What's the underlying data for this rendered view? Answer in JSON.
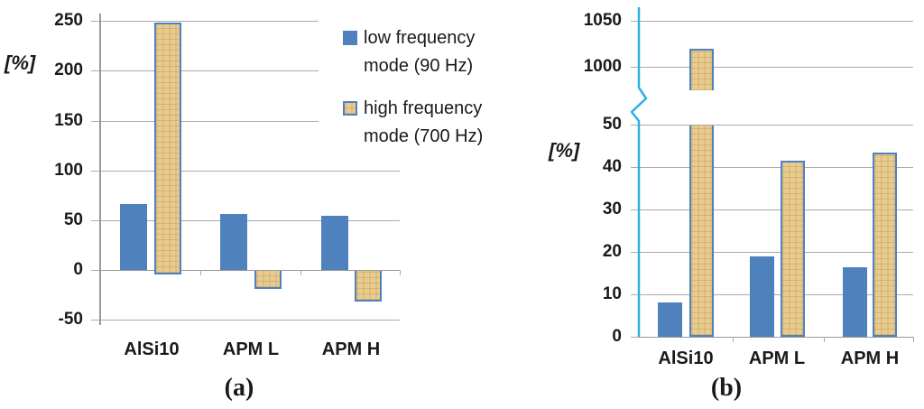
{
  "figure": {
    "captions": [
      "(a)",
      "(b)"
    ]
  },
  "colors": {
    "low_frequency": "#4f81bd",
    "high_frequency_fill": "#e8cb8e",
    "high_frequency_border": "#4f81bd",
    "gridline": "#ababab",
    "zero_line": "#999999",
    "axis_a": "#9a9a9a",
    "axis_b": "#29b1e6",
    "text": "#1a1a1a"
  },
  "legend": {
    "items": [
      {
        "series": "low",
        "line1": "low frequency",
        "line2": "mode (90 Hz)"
      },
      {
        "series": "high",
        "line1": "high frequency",
        "line2": "mode (700 Hz)"
      }
    ]
  },
  "chart_data": [
    {
      "id": "a",
      "type": "bar",
      "title": "",
      "ylabel": "[%]",
      "categories": [
        "AlSi10",
        "APM L",
        "APM H"
      ],
      "series": [
        {
          "name": "low frequency mode (90 Hz)",
          "values": [
            66,
            56,
            54
          ]
        },
        {
          "name": "high frequency mode (700 Hz)",
          "values": [
            248,
            -18,
            -31
          ]
        }
      ],
      "ylim": [
        -50,
        250
      ],
      "yticks": [
        250,
        200,
        150,
        100,
        50,
        0,
        -50
      ],
      "grid": true,
      "legend_position": "right-top"
    },
    {
      "id": "b",
      "type": "bar",
      "title": "",
      "ylabel": "[%]",
      "categories": [
        "AlSi10",
        "APM L",
        "APM H"
      ],
      "series": [
        {
          "name": "low frequency mode (90 Hz)",
          "values": [
            8,
            19,
            16.4
          ]
        },
        {
          "name": "high frequency mode (700 Hz)",
          "values": [
            1020,
            41.5,
            43.3
          ]
        }
      ],
      "axis_break": {
        "lower_max": 50,
        "upper_min": 1000,
        "upper_max": 1050
      },
      "yticks_lower": [
        0,
        10,
        20,
        30,
        40,
        50
      ],
      "yticks_upper": [
        1000,
        1050
      ],
      "grid": true,
      "legend_position": "none"
    }
  ]
}
